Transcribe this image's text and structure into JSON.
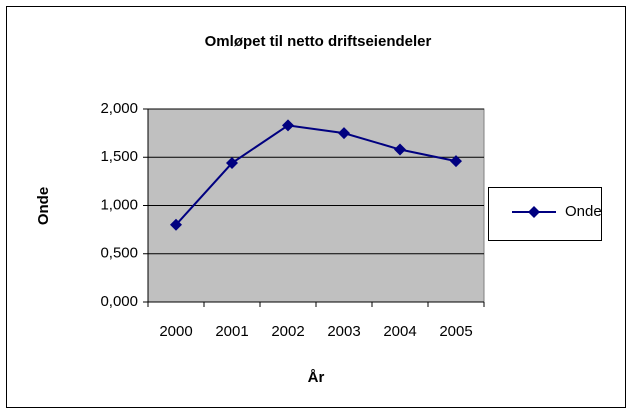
{
  "chart_data": {
    "type": "line",
    "title": "Omløpet til netto driftseiendeler",
    "x_label": "År",
    "y_label": "Onde",
    "categories": [
      "2000",
      "2001",
      "2002",
      "2003",
      "2004",
      "2005"
    ],
    "series": [
      {
        "name": "Onde",
        "color": "#000080",
        "values": [
          0.8,
          1.44,
          1.83,
          1.75,
          1.58,
          1.46
        ]
      }
    ],
    "ylim": [
      0,
      2
    ],
    "yticks": [
      {
        "value": 0,
        "label": "0,000"
      },
      {
        "value": 0.5,
        "label": "0,500"
      },
      {
        "value": 1,
        "label": "1,000"
      },
      {
        "value": 1.5,
        "label": "1,500"
      },
      {
        "value": 2,
        "label": "2,000"
      }
    ],
    "grid": true,
    "legend": "right",
    "plot_background": "#c0c0c0"
  }
}
